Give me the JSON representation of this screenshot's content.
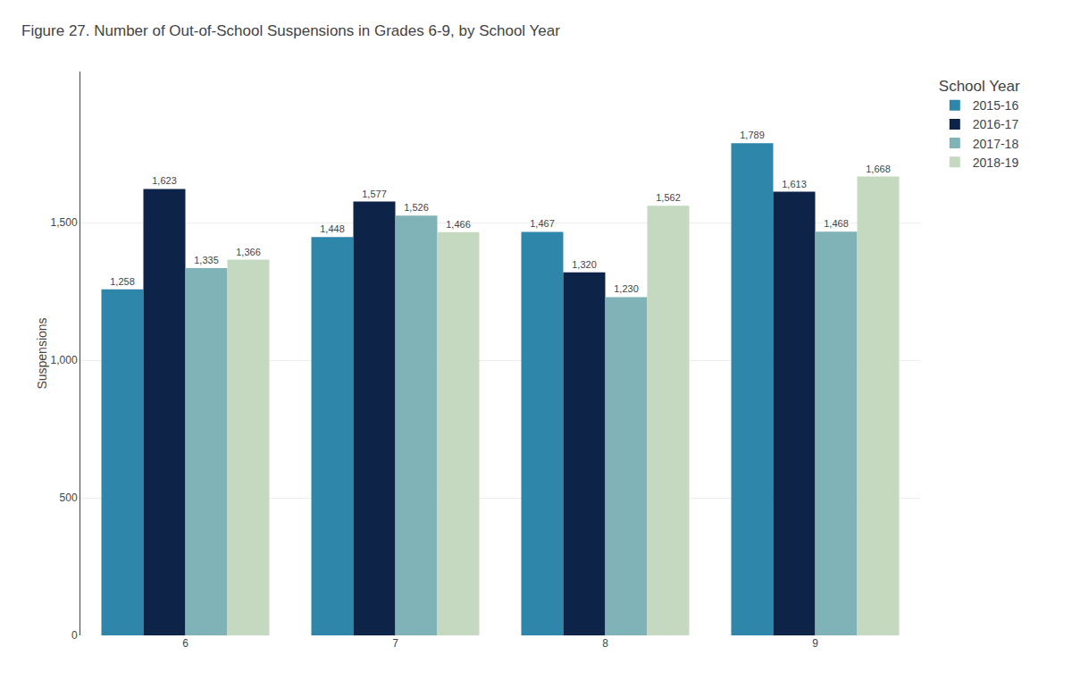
{
  "chart_data": {
    "type": "bar",
    "title": "Figure 27. Number of Out-of-School Suspensions in Grades 6-9, by School Year",
    "ylabel": "Suspensions",
    "categories": [
      "6",
      "7",
      "8",
      "9"
    ],
    "series": [
      {
        "name": "2015-16",
        "color": "#2e86ab",
        "values": [
          1258,
          1448,
          1467,
          1789
        ],
        "value_labels": [
          "1,258",
          "1,448",
          "1,467",
          "1,789"
        ]
      },
      {
        "name": "2016-17",
        "color": "#0d2448",
        "values": [
          1623,
          1577,
          1320,
          1613
        ],
        "value_labels": [
          "1,623",
          "1,577",
          "1,320",
          "1,613"
        ]
      },
      {
        "name": "2017-18",
        "color": "#7fb3b8",
        "values": [
          1335,
          1526,
          1230,
          1468
        ],
        "value_labels": [
          "1,335",
          "1,526",
          "1,230",
          "1,468"
        ]
      },
      {
        "name": "2018-19",
        "color": "#c5d9c0",
        "values": [
          1366,
          1466,
          1562,
          1668
        ],
        "value_labels": [
          "1,366",
          "1,466",
          "1,562",
          "1,668"
        ]
      }
    ],
    "ylim": [
      0,
      2050
    ],
    "yticks": [
      0,
      500,
      {
        "value": 1000,
        "label": "1,000"
      },
      {
        "value": 1500,
        "label": "1,500"
      }
    ],
    "grid": true,
    "legend": "right",
    "legend_title": "School Year",
    "data_labels": true
  }
}
